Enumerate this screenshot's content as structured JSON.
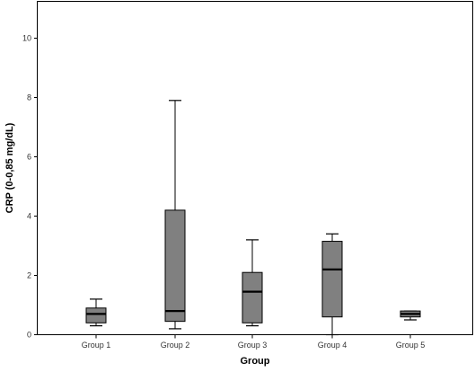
{
  "chart_data": {
    "type": "boxplot",
    "xlabel": "Group",
    "ylabel": "CRP (0-0,85 mg/dL)",
    "ylim": [
      0,
      11
    ],
    "yticks": [
      "0",
      "2",
      "4",
      "6",
      "8",
      "10"
    ],
    "grid": false,
    "box_color": "#808080",
    "categories": [
      "Group 1",
      "Group 2",
      "Group 3",
      "Group 4",
      "Group 5"
    ],
    "boxes": [
      {
        "category": "Group 1",
        "min": 0.3,
        "q1": 0.4,
        "median": 0.7,
        "q3": 0.9,
        "max": 1.2
      },
      {
        "category": "Group 2",
        "min": 0.2,
        "q1": 0.45,
        "median": 0.8,
        "q3": 4.2,
        "max": 7.9
      },
      {
        "category": "Group 3",
        "min": 0.3,
        "q1": 0.4,
        "median": 1.45,
        "q3": 2.1,
        "max": 3.2
      },
      {
        "category": "Group 4",
        "min": 0.0,
        "q1": 0.6,
        "median": 2.2,
        "q3": 3.15,
        "max": 3.4
      },
      {
        "category": "Group 5",
        "min": 0.5,
        "q1": 0.6,
        "median": 0.7,
        "q3": 0.8,
        "max": 0.8
      }
    ]
  }
}
